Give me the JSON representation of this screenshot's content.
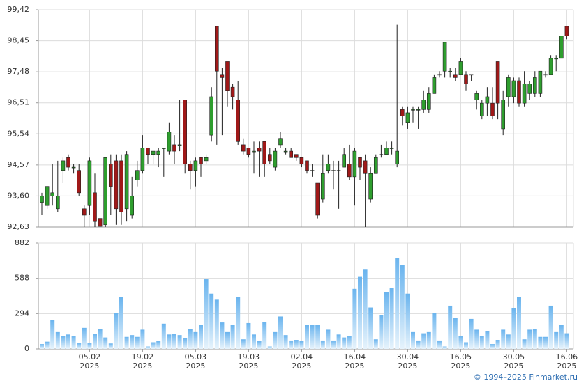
{
  "chart_data": [
    {
      "type": "candlestick",
      "up_color": "#2e9e2e",
      "down_color": "#a01818",
      "ylim": [
        92.63,
        99.42
      ],
      "yticks": [
        {
          "value": 92.63,
          "label": "92,63"
        },
        {
          "value": 93.6,
          "label": "93,60"
        },
        {
          "value": 94.57,
          "label": "94,57"
        },
        {
          "value": 95.54,
          "label": "95,54"
        },
        {
          "value": 96.51,
          "label": "96,51"
        },
        {
          "value": 97.48,
          "label": "97,48"
        },
        {
          "value": 98.45,
          "label": "98,45"
        },
        {
          "value": 99.42,
          "label": "99,42"
        }
      ],
      "open": [
        93.4,
        93.3,
        93.6,
        93.2,
        94.4,
        94.8,
        94.5,
        94.4,
        93.2,
        93.3,
        93.7,
        92.9,
        92.7,
        94.6,
        94.7,
        94.7,
        93.2,
        93.0,
        94.1,
        94.4,
        95.1,
        94.9,
        94.9,
        95.1,
        95.0,
        95.2,
        95.2,
        96.6,
        94.6,
        94.4,
        94.8,
        94.7,
        95.5,
        98.9,
        97.4,
        97.8,
        97.0,
        96.6,
        95.2,
        95.1,
        95.0,
        95.1,
        95.3,
        94.9,
        94.5,
        95.2,
        95.0,
        95.0,
        94.9,
        94.8,
        94.7,
        94.4,
        94.0,
        93.5,
        94.4,
        94.4,
        94.4,
        94.5,
        94.6,
        94.2,
        94.8,
        94.7,
        93.5,
        94.3,
        94.9,
        94.9,
        95.1,
        94.6,
        96.3,
        95.9,
        96.3,
        96.3,
        96.3,
        96.3,
        96.8,
        97.4,
        97.5,
        97.5,
        97.4,
        97.4,
        97.4,
        97.4,
        96.6,
        96.1,
        96.5,
        96.5,
        97.8,
        95.7,
        96.7,
        96.7,
        97.2,
        96.5,
        96.8,
        96.8,
        96.8,
        97.4,
        97.4,
        97.9,
        97.9,
        98.9
      ],
      "high": [
        93.7,
        93.9,
        94.6,
        94.7,
        94.8,
        94.9,
        94.6,
        94.6,
        93.3,
        94.8,
        94.3,
        92.9,
        94.8,
        94.9,
        94.9,
        94.9,
        95.0,
        94.2,
        94.7,
        95.5,
        95.1,
        95.0,
        95.1,
        95.1,
        95.9,
        95.5,
        96.6,
        96.6,
        94.7,
        94.8,
        94.8,
        94.9,
        97.0,
        98.9,
        97.6,
        97.8,
        97.1,
        97.2,
        95.4,
        95.1,
        95.3,
        95.3,
        95.3,
        95.1,
        95.1,
        95.6,
        95.1,
        95.1,
        94.9,
        94.8,
        94.7,
        94.6,
        94.0,
        94.9,
        94.9,
        94.7,
        94.7,
        95.1,
        95.2,
        95.1,
        94.8,
        94.9,
        94.5,
        94.9,
        95.2,
        95.3,
        95.3,
        98.95,
        96.4,
        96.4,
        96.4,
        96.4,
        96.9,
        97.0,
        97.4,
        97.5,
        98.4,
        97.6,
        97.6,
        97.9,
        97.5,
        97.4,
        96.9,
        96.6,
        97.0,
        97.0,
        97.8,
        96.9,
        97.4,
        97.3,
        97.3,
        97.5,
        97.2,
        97.5,
        97.5,
        97.5,
        98.0,
        98.0,
        98.6,
        98.9
      ],
      "low": [
        93.0,
        93.2,
        93.3,
        93.1,
        94.0,
        94.4,
        94.3,
        93.6,
        92.63,
        93.0,
        92.63,
        92.63,
        92.63,
        93.0,
        92.7,
        92.7,
        92.8,
        92.9,
        93.9,
        94.3,
        94.6,
        94.6,
        94.5,
        94.2,
        94.9,
        94.6,
        95.0,
        94.3,
        93.8,
        93.9,
        94.2,
        94.6,
        95.3,
        95.2,
        95.5,
        96.4,
        96.3,
        95.2,
        94.9,
        94.8,
        94.3,
        94.2,
        94.2,
        94.6,
        94.4,
        95.1,
        94.9,
        94.8,
        94.7,
        94.5,
        94.3,
        94.2,
        92.9,
        93.4,
        94.3,
        93.8,
        93.2,
        94.5,
        94.1,
        93.3,
        94.1,
        92.63,
        93.4,
        94.3,
        94.8,
        94.9,
        94.9,
        94.5,
        95.8,
        95.7,
        95.9,
        95.7,
        96.2,
        96.2,
        96.8,
        97.3,
        97.3,
        97.3,
        97.2,
        97.4,
        96.9,
        97.2,
        96.3,
        96.0,
        96.1,
        96.0,
        96.0,
        95.5,
        96.4,
        96.5,
        96.4,
        96.4,
        96.6,
        96.7,
        96.7,
        97.3,
        97.4,
        97.5,
        97.9,
        98.5
      ],
      "close": [
        93.6,
        93.9,
        93.7,
        93.6,
        94.7,
        94.5,
        94.5,
        93.7,
        93.0,
        94.7,
        92.8,
        92.65,
        94.8,
        93.9,
        93.2,
        93.1,
        94.9,
        93.6,
        94.4,
        95.1,
        94.9,
        95.0,
        95.0,
        95.1,
        95.6,
        95.0,
        95.2,
        94.6,
        94.4,
        94.7,
        94.6,
        94.8,
        96.7,
        97.5,
        97.3,
        96.9,
        96.7,
        95.3,
        95.0,
        94.9,
        95.0,
        95.0,
        94.6,
        94.7,
        95.0,
        95.4,
        95.0,
        94.8,
        94.8,
        94.6,
        94.4,
        94.4,
        93.0,
        94.3,
        94.6,
        94.4,
        94.4,
        94.9,
        94.2,
        95.0,
        94.5,
        94.3,
        94.3,
        94.8,
        94.9,
        95.1,
        95.1,
        95.0,
        96.1,
        96.2,
        96.3,
        96.3,
        96.6,
        96.8,
        97.3,
        97.4,
        98.4,
        97.5,
        97.3,
        97.8,
        97.1,
        97.4,
        96.8,
        96.5,
        96.7,
        96.1,
        96.5,
        96.6,
        97.3,
        97.2,
        96.5,
        97.1,
        97.1,
        97.3,
        97.5,
        97.4,
        97.9,
        97.9,
        98.6,
        98.6
      ]
    },
    {
      "type": "bar",
      "color": "#6ab4ee",
      "ylim": [
        0,
        882
      ],
      "yticks": [
        0,
        294,
        588,
        882
      ],
      "categories": [
        null,
        null,
        null,
        null,
        null,
        null,
        null,
        null,
        null,
        "05.02\n2025",
        null,
        null,
        null,
        null,
        null,
        null,
        null,
        null,
        null,
        "19.02\n2025",
        null,
        null,
        null,
        null,
        null,
        null,
        null,
        null,
        null,
        "05.03\n2025",
        null,
        null,
        null,
        null,
        null,
        null,
        null,
        null,
        null,
        "19.03\n2025",
        null,
        null,
        null,
        null,
        null,
        null,
        null,
        null,
        null,
        "02.04\n2025",
        null,
        null,
        null,
        null,
        null,
        null,
        null,
        null,
        null,
        "16.04\n2025",
        null,
        null,
        null,
        null,
        null,
        null,
        null,
        null,
        null,
        "30.04\n2025",
        null,
        null,
        null,
        null,
        null,
        null,
        null,
        null,
        null,
        "16.05\n2025",
        null,
        null,
        null,
        null,
        null,
        null,
        null,
        null,
        null,
        "30.05\n2025",
        null,
        null,
        null,
        null,
        null,
        null,
        null,
        null,
        null,
        "16.06\n2025"
      ],
      "values": [
        40,
        60,
        240,
        140,
        110,
        120,
        110,
        50,
        175,
        50,
        125,
        165,
        95,
        45,
        300,
        430,
        100,
        115,
        100,
        160,
        20,
        55,
        65,
        210,
        120,
        125,
        115,
        90,
        165,
        140,
        200,
        580,
        460,
        410,
        220,
        140,
        200,
        430,
        80,
        215,
        120,
        65,
        225,
        20,
        140,
        270,
        115,
        70,
        75,
        65,
        200,
        200,
        200,
        70,
        160,
        70,
        120,
        95,
        110,
        500,
        600,
        660,
        345,
        80,
        280,
        470,
        510,
        760,
        700,
        460,
        140,
        70,
        130,
        140,
        300,
        70,
        20,
        360,
        260,
        110,
        55,
        250,
        160,
        110,
        150,
        40,
        75,
        160,
        120,
        340,
        430,
        80,
        160,
        165,
        100,
        100,
        360,
        140,
        200,
        130
      ]
    }
  ],
  "footer": "© 1994–2025 Finmarket.ru"
}
